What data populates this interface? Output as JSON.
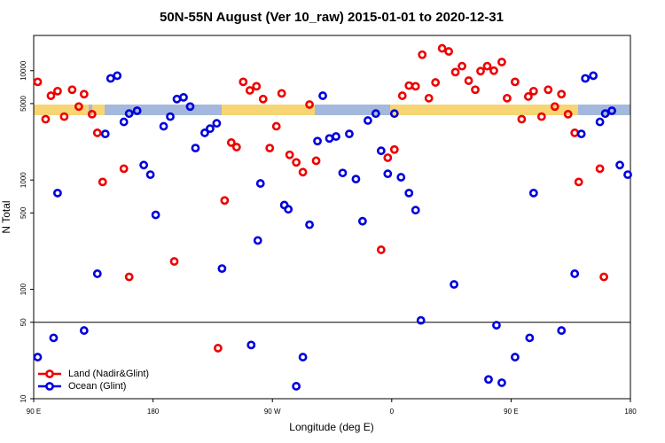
{
  "chart_data": {
    "type": "scatter",
    "title": "50N-55N August (Ver 10_raw)   2015-01-01 to 2020-12-31",
    "x_label": "Longitude (deg E)",
    "y_label": "N Total",
    "xlim": [
      90,
      540
    ],
    "xticks": [
      {
        "value": 90,
        "label": "90 E"
      },
      {
        "value": 180,
        "label": "180"
      },
      {
        "value": 270,
        "label": "90 W"
      },
      {
        "value": 360,
        "label": "0"
      },
      {
        "value": 450,
        "label": "90 E"
      },
      {
        "value": 540,
        "label": "180"
      }
    ],
    "ylim": [
      10,
      21000
    ],
    "yticks": [
      10,
      50,
      100,
      500,
      1000,
      5000,
      10000
    ],
    "log_y": true,
    "reference_line": 50,
    "legend": "bottom-left",
    "series": [
      {
        "name": "Land (Nadir&Glint)",
        "color": "#ee0000",
        "x": [
          93,
          99,
          103,
          108,
          113,
          119,
          124,
          128,
          134,
          138,
          142,
          158,
          162,
          196,
          229,
          234,
          239,
          243,
          248,
          253,
          258,
          263,
          268,
          273,
          277,
          283,
          288,
          293,
          298,
          303,
          352,
          357,
          362,
          368,
          373,
          378,
          383,
          388,
          393,
          398,
          403,
          408,
          413,
          418,
          423,
          427,
          432,
          437,
          443,
          447,
          453,
          458,
          463,
          467,
          473,
          478,
          483,
          488,
          493,
          498,
          501,
          517,
          520
        ],
        "values": [
          7900,
          3600,
          5900,
          6500,
          3800,
          6700,
          4700,
          6100,
          4000,
          2700,
          960,
          1270,
          130,
          180,
          29,
          650,
          2200,
          2000,
          7900,
          6600,
          7200,
          5500,
          1960,
          3100,
          6200,
          1700,
          1450,
          1180,
          4900,
          1500,
          230,
          1600,
          1900,
          5900,
          7300,
          7200,
          14000,
          5600,
          7800,
          16000,
          15000,
          9700,
          11000,
          8100,
          6700,
          9900,
          11000,
          10000,
          12000,
          5600,
          7900,
          3600,
          5800,
          6500,
          3800,
          6700,
          4700,
          6100,
          4000,
          2700,
          960,
          1270,
          130
        ]
      },
      {
        "name": "Ocean (Glint)",
        "color": "#0000dd",
        "x": [
          93,
          105,
          108,
          128,
          138,
          144,
          148,
          153,
          158,
          162,
          168,
          173,
          178,
          182,
          188,
          193,
          198,
          203,
          208,
          212,
          219,
          223,
          228,
          232,
          254,
          259,
          261,
          279,
          282,
          288,
          293,
          298,
          304,
          308,
          313,
          318,
          323,
          328,
          333,
          338,
          342,
          348,
          352,
          357,
          362,
          367,
          373,
          378,
          382,
          407,
          433,
          439,
          443,
          453,
          464,
          467,
          488,
          498,
          503,
          506,
          512,
          517,
          521,
          526,
          532,
          538
        ],
        "values": [
          24,
          36,
          760,
          42,
          139,
          2640,
          8500,
          9000,
          3400,
          4050,
          4300,
          1370,
          1120,
          480,
          3100,
          3800,
          5500,
          5700,
          4700,
          1960,
          2700,
          2950,
          3300,
          155,
          31,
          280,
          930,
          590,
          540,
          13,
          24,
          390,
          2270,
          5900,
          2400,
          2500,
          1160,
          2640,
          1020,
          420,
          3500,
          4050,
          1850,
          1140,
          4050,
          1060,
          760,
          530,
          52,
          111,
          15,
          47,
          14,
          24,
          36,
          760,
          42,
          139,
          2640,
          8500,
          9000,
          3400,
          4050,
          4300,
          1370,
          1120
        ]
      }
    ]
  }
}
